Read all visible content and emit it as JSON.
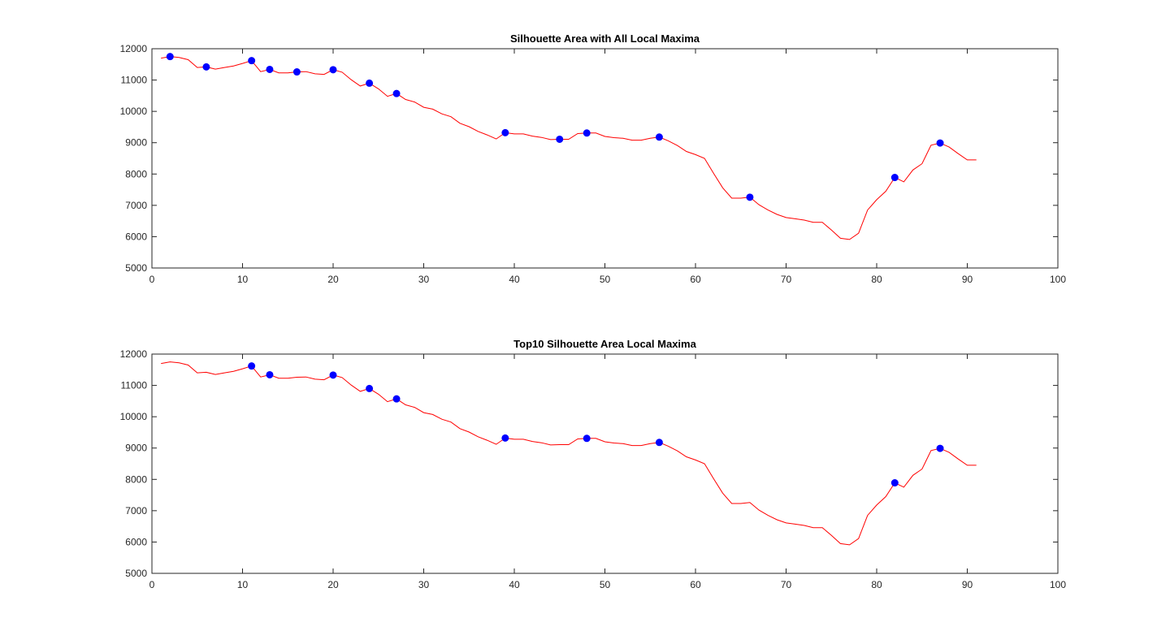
{
  "chart_data": [
    {
      "type": "line",
      "title": "Silhouette Area with All Local Maxima",
      "xlabel": "",
      "ylabel": "",
      "xlim": [
        0,
        100
      ],
      "ylim": [
        5000,
        12000
      ],
      "xticks": [
        "0",
        "10",
        "20",
        "30",
        "40",
        "50",
        "60",
        "70",
        "80",
        "90",
        "100"
      ],
      "yticks": [
        "5000",
        "6000",
        "7000",
        "8000",
        "9000",
        "10000",
        "11000",
        "12000"
      ],
      "grid": false,
      "series": [
        {
          "style": "line",
          "color": "#ff0000",
          "x": [
            1,
            2,
            3,
            4,
            5,
            6,
            7,
            8,
            9,
            10,
            11,
            12,
            13,
            14,
            15,
            16,
            17,
            18,
            19,
            20,
            21,
            22,
            23,
            24,
            25,
            26,
            27,
            28,
            29,
            30,
            31,
            32,
            33,
            34,
            35,
            36,
            37,
            38,
            39,
            40,
            41,
            42,
            43,
            44,
            45,
            46,
            47,
            48,
            49,
            50,
            51,
            52,
            53,
            54,
            55,
            56,
            57,
            58,
            59,
            60,
            61,
            62,
            63,
            64,
            65,
            66,
            67,
            68,
            69,
            70,
            71,
            72,
            73,
            74,
            75,
            76,
            77,
            78,
            79,
            80,
            81,
            82,
            83,
            84,
            85,
            86,
            87,
            88,
            89,
            90,
            91
          ],
          "y": [
            11700,
            11750,
            11720,
            11650,
            11400,
            11420,
            11350,
            11400,
            11450,
            11530,
            11620,
            11270,
            11340,
            11230,
            11230,
            11260,
            11270,
            11200,
            11180,
            11330,
            11250,
            11010,
            10810,
            10900,
            10720,
            10480,
            10570,
            10380,
            10300,
            10130,
            10070,
            9920,
            9830,
            9620,
            9510,
            9360,
            9250,
            9120,
            9320,
            9280,
            9280,
            9210,
            9170,
            9100,
            9110,
            9110,
            9290,
            9310,
            9310,
            9200,
            9160,
            9140,
            9080,
            9080,
            9140,
            9180,
            9060,
            8910,
            8720,
            8620,
            8500,
            8020,
            7560,
            7230,
            7230,
            7260,
            7020,
            6850,
            6710,
            6610,
            6570,
            6530,
            6460,
            6460,
            6210,
            5950,
            5910,
            6110,
            6850,
            7180,
            7450,
            7890,
            7750,
            8130,
            8330,
            8920,
            8990,
            8860,
            8650,
            8450,
            8450
          ]
        },
        {
          "style": "markers",
          "color": "#0000ff",
          "x": [
            2,
            6,
            11,
            13,
            16,
            20,
            24,
            27,
            39,
            45,
            48,
            56,
            66,
            82,
            87
          ],
          "y": [
            11750,
            11420,
            11620,
            11340,
            11260,
            11330,
            10900,
            10570,
            9320,
            9110,
            9310,
            9180,
            7260,
            7890,
            8990
          ]
        }
      ]
    },
    {
      "type": "line",
      "title": "Top10 Silhouette Area Local Maxima",
      "xlabel": "",
      "ylabel": "",
      "xlim": [
        0,
        100
      ],
      "ylim": [
        5000,
        12000
      ],
      "xticks": [
        "0",
        "10",
        "20",
        "30",
        "40",
        "50",
        "60",
        "70",
        "80",
        "90",
        "100"
      ],
      "yticks": [
        "5000",
        "6000",
        "7000",
        "8000",
        "9000",
        "10000",
        "11000",
        "12000"
      ],
      "grid": false,
      "series": [
        {
          "style": "line",
          "color": "#ff0000",
          "x": [
            1,
            2,
            3,
            4,
            5,
            6,
            7,
            8,
            9,
            10,
            11,
            12,
            13,
            14,
            15,
            16,
            17,
            18,
            19,
            20,
            21,
            22,
            23,
            24,
            25,
            26,
            27,
            28,
            29,
            30,
            31,
            32,
            33,
            34,
            35,
            36,
            37,
            38,
            39,
            40,
            41,
            42,
            43,
            44,
            45,
            46,
            47,
            48,
            49,
            50,
            51,
            52,
            53,
            54,
            55,
            56,
            57,
            58,
            59,
            60,
            61,
            62,
            63,
            64,
            65,
            66,
            67,
            68,
            69,
            70,
            71,
            72,
            73,
            74,
            75,
            76,
            77,
            78,
            79,
            80,
            81,
            82,
            83,
            84,
            85,
            86,
            87,
            88,
            89,
            90,
            91
          ],
          "y": [
            11700,
            11750,
            11720,
            11650,
            11400,
            11420,
            11350,
            11400,
            11450,
            11530,
            11620,
            11270,
            11340,
            11230,
            11230,
            11260,
            11270,
            11200,
            11180,
            11330,
            11250,
            11010,
            10810,
            10900,
            10720,
            10480,
            10570,
            10380,
            10300,
            10130,
            10070,
            9920,
            9830,
            9620,
            9510,
            9360,
            9250,
            9120,
            9320,
            9280,
            9280,
            9210,
            9170,
            9100,
            9110,
            9110,
            9290,
            9310,
            9310,
            9200,
            9160,
            9140,
            9080,
            9080,
            9140,
            9180,
            9060,
            8910,
            8720,
            8620,
            8500,
            8020,
            7560,
            7230,
            7230,
            7260,
            7020,
            6850,
            6710,
            6610,
            6570,
            6530,
            6460,
            6460,
            6210,
            5950,
            5910,
            6110,
            6850,
            7180,
            7450,
            7890,
            7750,
            8130,
            8330,
            8920,
            8990,
            8860,
            8650,
            8450,
            8450
          ]
        },
        {
          "style": "markers",
          "color": "#0000ff",
          "x": [
            11,
            13,
            20,
            24,
            27,
            39,
            48,
            56,
            82,
            87
          ],
          "y": [
            11620,
            11340,
            11330,
            10900,
            10570,
            9320,
            9310,
            9180,
            7890,
            8990
          ]
        }
      ]
    }
  ]
}
